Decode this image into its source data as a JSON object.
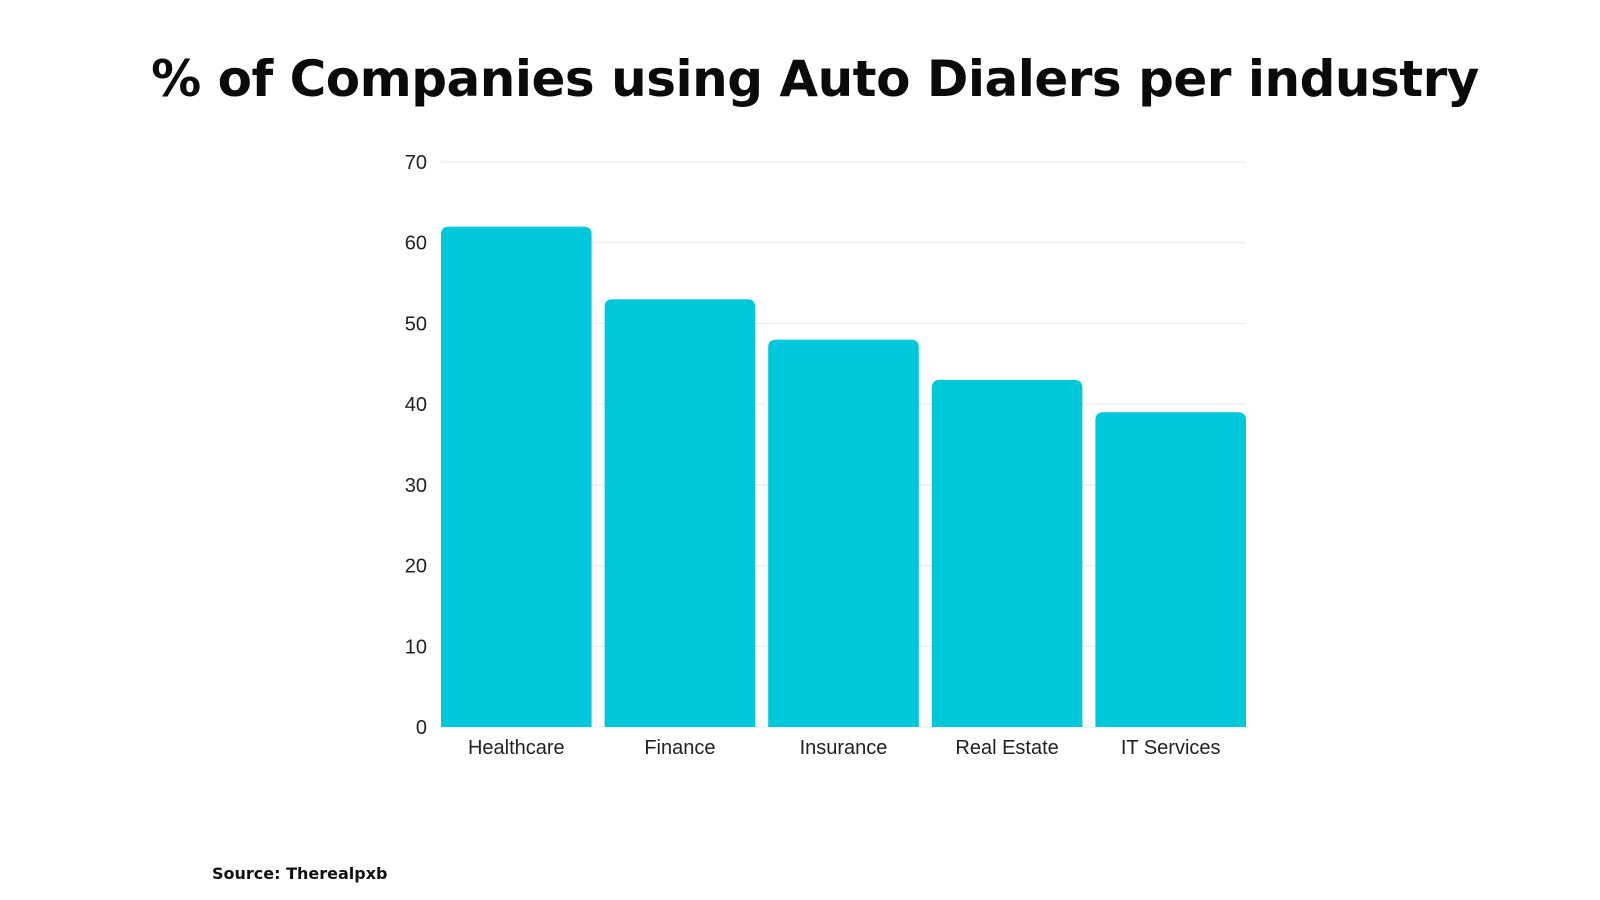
{
  "chart_data": {
    "type": "bar",
    "title": "% of Companies using Auto Dialers per industry",
    "categories": [
      "Healthcare",
      "Finance",
      "Insurance",
      "Real Estate",
      "IT Services"
    ],
    "values": [
      62,
      53,
      48,
      43,
      39
    ],
    "xlabel": "",
    "ylabel": "",
    "ylim": [
      0,
      70
    ],
    "yticks": [
      0,
      10,
      20,
      30,
      40,
      50,
      60,
      70
    ],
    "grid": true,
    "legend": "none",
    "bar_color": "#00c8db",
    "grid_color": "#e8e8e8"
  },
  "source": "Source: Therealpxb"
}
